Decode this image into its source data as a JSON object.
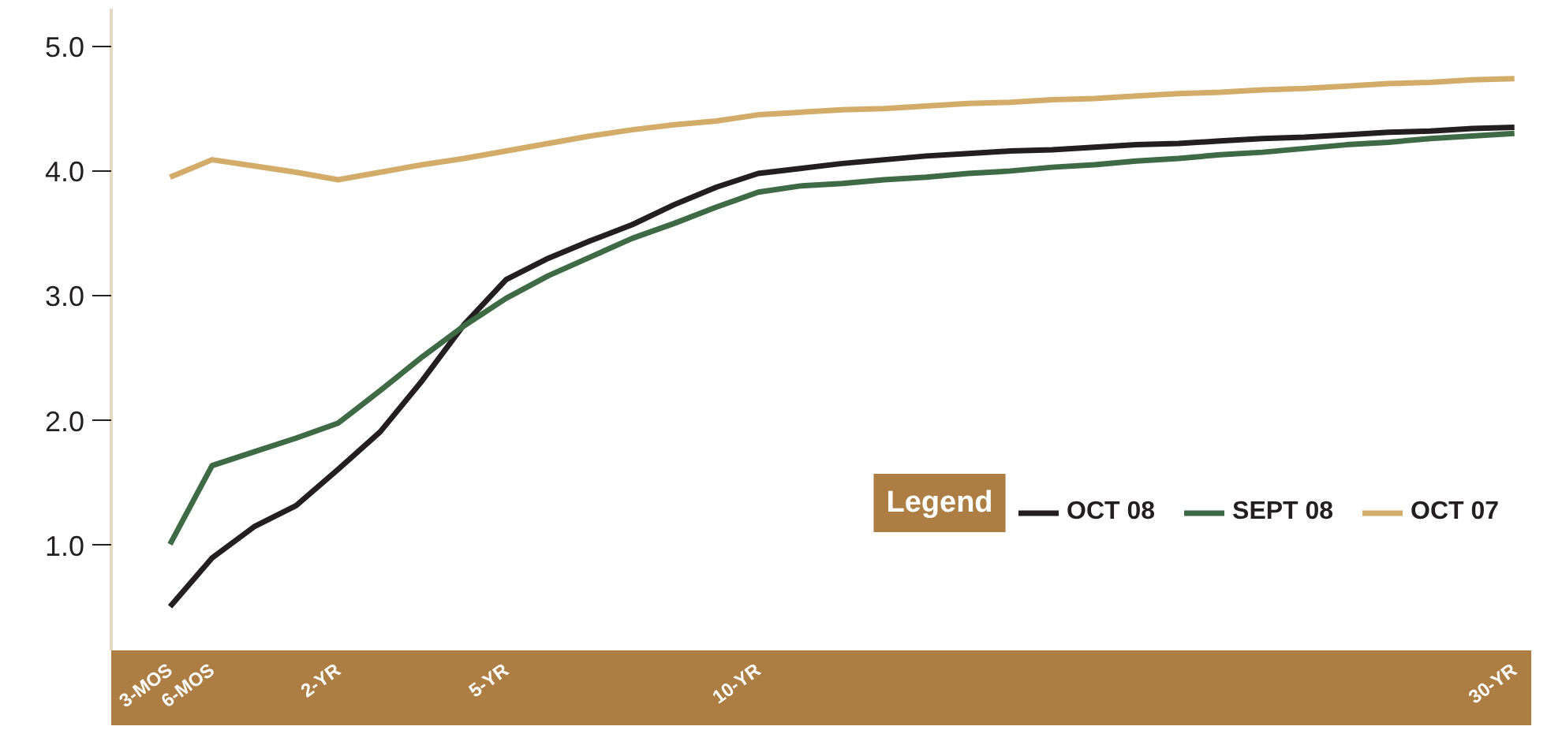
{
  "chart_data": {
    "type": "line",
    "legend_title": "Legend",
    "legend": "bottom right",
    "grid": false,
    "marker": "none",
    "line_style": "solid",
    "categories": [
      "3-MOS",
      "6-MOS",
      null,
      null,
      "2-YR",
      null,
      null,
      null,
      "5-YR",
      null,
      null,
      null,
      null,
      null,
      "10-YR",
      null,
      null,
      null,
      null,
      null,
      null,
      null,
      null,
      null,
      null,
      null,
      null,
      null,
      null,
      null,
      null,
      null,
      "30-YR"
    ],
    "ylim": [
      0.16,
      5.3
    ],
    "yticks": [
      {
        "value": 1,
        "label": "1.0"
      },
      {
        "value": 2,
        "label": "2.0"
      },
      {
        "value": 3,
        "label": "3.0"
      },
      {
        "value": 4,
        "label": "4.0"
      },
      {
        "value": 5,
        "label": "5.0"
      }
    ],
    "series": [
      {
        "name": "OCT 08",
        "color": "#231f20",
        "values": [
          0.51,
          0.9,
          1.15,
          1.32,
          1.61,
          1.91,
          2.32,
          2.77,
          3.13,
          3.3,
          3.44,
          3.57,
          3.73,
          3.87,
          3.98,
          4.02,
          4.06,
          4.09,
          4.12,
          4.14,
          4.16,
          4.17,
          4.19,
          4.21,
          4.22,
          4.24,
          4.26,
          4.27,
          4.29,
          4.31,
          4.32,
          4.34,
          4.35
        ]
      },
      {
        "name": "SEPT 08",
        "color": "#3e6b45",
        "values": [
          1.01,
          1.64,
          1.75,
          1.86,
          1.98,
          2.24,
          2.51,
          2.76,
          2.98,
          3.16,
          3.31,
          3.46,
          3.58,
          3.71,
          3.83,
          3.88,
          3.9,
          3.93,
          3.95,
          3.98,
          4.0,
          4.03,
          4.05,
          4.08,
          4.1,
          4.13,
          4.15,
          4.18,
          4.21,
          4.23,
          4.26,
          4.28,
          4.3
        ]
      },
      {
        "name": "OCT 07",
        "color": "#d4ac6a",
        "values": [
          3.95,
          4.09,
          4.04,
          3.99,
          3.93,
          3.99,
          4.05,
          4.1,
          4.16,
          4.22,
          4.28,
          4.33,
          4.37,
          4.4,
          4.45,
          4.47,
          4.49,
          4.5,
          4.52,
          4.54,
          4.55,
          4.57,
          4.58,
          4.6,
          4.62,
          4.63,
          4.65,
          4.66,
          4.68,
          4.7,
          4.71,
          4.73,
          4.74
        ]
      }
    ]
  }
}
